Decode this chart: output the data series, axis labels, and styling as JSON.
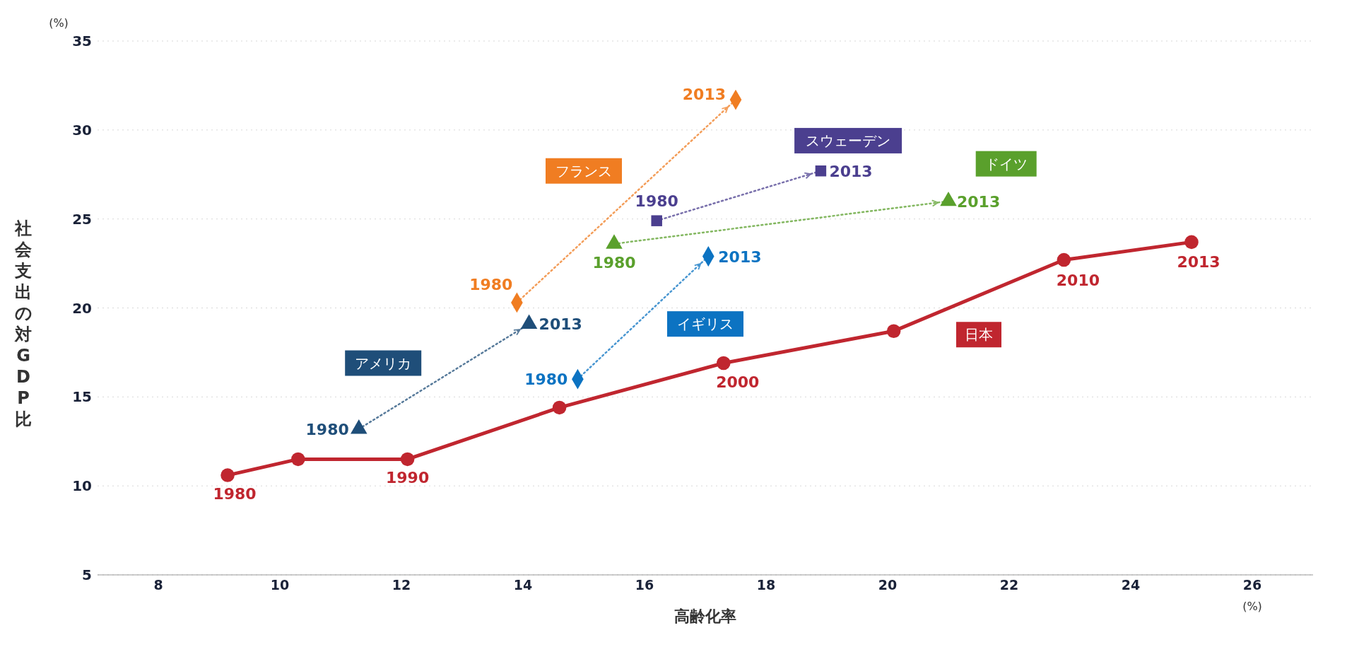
{
  "chart_data": {
    "type": "scatter",
    "xlabel": "高齢化率",
    "ylabel": "社会支出の対GDP比",
    "xlim": [
      7,
      27
    ],
    "xticks": [
      8,
      10,
      12,
      14,
      16,
      18,
      20,
      22,
      24,
      26
    ],
    "ylim": [
      5,
      35
    ],
    "yticks": [
      5,
      10,
      15,
      20,
      25,
      30,
      35
    ],
    "grid": "y",
    "series": [
      {
        "name": "日本",
        "type": "line",
        "color": "#c0262f",
        "marker": "circle",
        "line_style": "solid",
        "x": [
          9.14,
          10.3,
          12.1,
          14.6,
          17.3,
          20.1,
          22.9,
          25.0
        ],
        "values": [
          10.6,
          11.5,
          11.5,
          14.4,
          16.9,
          18.7,
          22.7,
          23.7
        ]
      },
      {
        "name": "アメリカ",
        "color": "#1f4e79",
        "marker": "triangle",
        "line_style": "dotted",
        "x": [
          11.3,
          14.1
        ],
        "values": [
          13.2,
          19.1
        ]
      },
      {
        "name": "フランス",
        "color": "#f07d22",
        "marker": "diamond",
        "line_style": "dotted",
        "x": [
          13.9,
          17.5
        ],
        "values": [
          20.3,
          31.7
        ]
      },
      {
        "name": "スウェーデン",
        "color": "#4b3f8f",
        "marker": "square",
        "line_style": "dotted",
        "x": [
          16.2,
          18.9
        ],
        "values": [
          24.9,
          27.7
        ]
      },
      {
        "name": "ドイツ",
        "color": "#5aa02c",
        "marker": "triangle",
        "line_style": "dotted",
        "x": [
          15.5,
          21.0
        ],
        "values": [
          23.6,
          26.0
        ]
      },
      {
        "name": "イギリス",
        "color": "#0c73c2",
        "marker": "diamond",
        "line_style": "dotted",
        "x": [
          14.9,
          17.05
        ],
        "values": [
          16.0,
          22.9
        ]
      }
    ],
    "annotations": [
      "(%)",
      "(%)",
      {
        "text": "1980",
        "x": 9.14,
        "y": 10.6
      },
      {
        "text": "1990",
        "x": 12.1,
        "y": 11.5
      },
      {
        "text": "2000",
        "x": 17.3,
        "y": 16.9
      },
      {
        "text": "2010",
        "x": 22.9,
        "y": 22.7
      },
      {
        "text": "2013",
        "x": 25.0,
        "y": 23.7
      },
      {
        "text": "1980",
        "x": 11.3,
        "y": 13.2
      },
      {
        "text": "2013",
        "x": 14.1,
        "y": 19.1
      },
      {
        "text": "1980",
        "x": 13.9,
        "y": 20.3
      },
      {
        "text": "2013",
        "x": 17.5,
        "y": 31.7
      },
      {
        "text": "1980",
        "x": 16.2,
        "y": 24.9
      },
      {
        "text": "2013",
        "x": 18.9,
        "y": 27.7
      },
      {
        "text": "1980",
        "x": 15.5,
        "y": 23.6
      },
      {
        "text": "2013",
        "x": 21.0,
        "y": 26.0
      },
      {
        "text": "1980",
        "x": 14.9,
        "y": 16.0
      },
      {
        "text": "2013",
        "x": 17.05,
        "y": 22.9
      }
    ]
  }
}
